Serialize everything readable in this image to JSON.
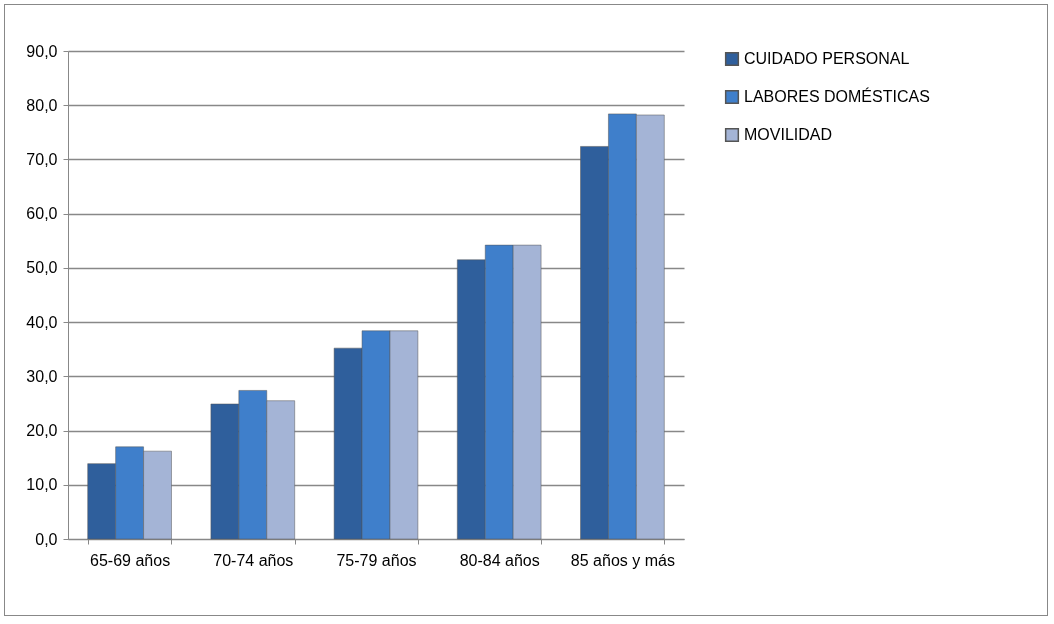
{
  "chart_data": {
    "type": "bar",
    "categories": [
      "65-69 años",
      "70-74 años",
      "75-79 años",
      "80-84 años",
      "85 años y más"
    ],
    "series": [
      {
        "name": "CUIDADO PERSONAL",
        "color": "#2f5f9c",
        "values": [
          13.9,
          24.9,
          35.2,
          51.5,
          72.4
        ]
      },
      {
        "name": " LABORES DOMÉSTICAS",
        "color": "#3f7fcb",
        "values": [
          17.0,
          27.4,
          38.4,
          54.2,
          78.4
        ]
      },
      {
        "name": "MOVILIDAD",
        "color": "#a4b4d6",
        "values": [
          16.2,
          25.5,
          38.4,
          54.2,
          78.2
        ]
      }
    ],
    "ylim": [
      0,
      90
    ],
    "yticks": [
      {
        "value": 0,
        "label": "0,0"
      },
      {
        "value": 10,
        "label": "10,0"
      },
      {
        "value": 20,
        "label": "20,0"
      },
      {
        "value": 30,
        "label": "30,0"
      },
      {
        "value": 40,
        "label": "40,0"
      },
      {
        "value": 50,
        "label": "50,0"
      },
      {
        "value": 60,
        "label": "60,0"
      },
      {
        "value": 70,
        "label": "70,0"
      },
      {
        "value": 80,
        "label": "80,0"
      },
      {
        "value": 90,
        "label": "90,0"
      }
    ],
    "grid": "y",
    "legend": "right"
  }
}
